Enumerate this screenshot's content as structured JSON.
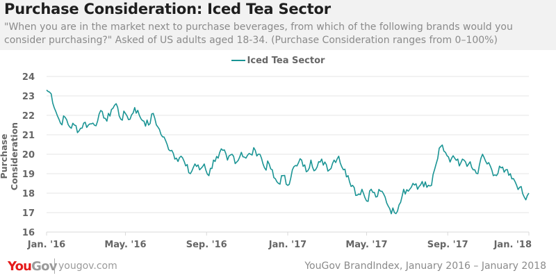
{
  "header": {
    "title": "Purchase Consideration: Iced Tea Sector",
    "subtitle": "\"When you are in the market next to purchase beverages, from which of the following brands would you consider purchasing?\" Asked of US adults aged 18-34. (Purchase Consideration ranges from 0–100%)"
  },
  "footer": {
    "logo_you": "You",
    "logo_gov": "Gov",
    "url": "yougov.com",
    "source": "YouGov BrandIndex, January 2016 – January 2018"
  },
  "colors": {
    "series": "#1a9494",
    "grid": "#e6e6e6",
    "brand_red": "#e51a1a"
  },
  "chart_data": {
    "type": "line",
    "title": "Purchase Consideration: Iced Tea Sector",
    "xlabel": "",
    "ylabel": "Purchase Consideration",
    "ylim": [
      16,
      24
    ],
    "yticks": [
      16,
      17,
      18,
      19,
      20,
      21,
      22,
      23,
      24
    ],
    "xrange_weeks": [
      0,
      104
    ],
    "xticks": [
      {
        "week": 0,
        "label": "Jan. '16"
      },
      {
        "week": 17,
        "label": "May. '16"
      },
      {
        "week": 34.5,
        "label": "Sep. '16"
      },
      {
        "week": 52,
        "label": "Jan. '17"
      },
      {
        "week": 69,
        "label": "May. '17"
      },
      {
        "week": 86.5,
        "label": "Sep. '17"
      },
      {
        "week": 104,
        "label": "Jan. '18"
      }
    ],
    "grid": true,
    "legend": "top-center",
    "series": [
      {
        "name": "Iced Tea Sector",
        "x_unit": "week since Jan 2016",
        "values": [
          23.3,
          23.1,
          22.2,
          21.6,
          21.9,
          21.4,
          21.5,
          21.2,
          21.6,
          21.5,
          21.6,
          21.7,
          22.2,
          21.7,
          22.3,
          22.6,
          21.8,
          22.1,
          21.8,
          22.4,
          22.0,
          21.7,
          21.5,
          22.1,
          21.4,
          20.9,
          20.5,
          20.2,
          19.8,
          19.9,
          19.4,
          19.0,
          19.5,
          19.2,
          19.5,
          18.9,
          19.7,
          19.8,
          20.2,
          19.7,
          20.0,
          19.6,
          20.1,
          19.8,
          20.0,
          20.2,
          20.0,
          19.3,
          19.5,
          18.8,
          18.5,
          18.9,
          18.4,
          19.2,
          19.4,
          19.7,
          19.1,
          19.7,
          19.2,
          19.6,
          19.6,
          19.2,
          19.7,
          19.9,
          19.2,
          18.9,
          18.4,
          17.9,
          18.2,
          17.6,
          18.2,
          17.8,
          18.1,
          17.8,
          17.2,
          17.0,
          17.4,
          18.2,
          18.1,
          18.5,
          18.2,
          18.6,
          18.3,
          18.4,
          19.5,
          20.4,
          20.1,
          19.6,
          19.8,
          19.4,
          19.7,
          19.5,
          19.2,
          19.0,
          20.0,
          19.5,
          19.2,
          18.9,
          19.3,
          19.2,
          19.0,
          18.6,
          18.3,
          17.8,
          18.0
        ],
        "values_note": "values are also plotted in full weekly resolution below"
      }
    ]
  }
}
